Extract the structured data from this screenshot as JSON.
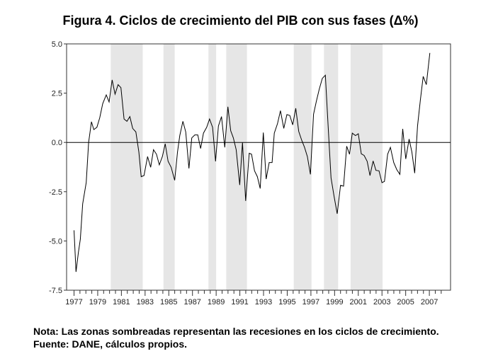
{
  "chart_data": {
    "type": "line",
    "title": "Figura 4. Ciclos de crecimiento del PIB con sus fases (Δ%)",
    "xlabel": "",
    "ylabel": "",
    "xlim": [
      1976.4,
      2008.8
    ],
    "ylim": [
      -7.5,
      5.0
    ],
    "yticks": [
      "5.0",
      "2.5",
      "0.0",
      "-2.5",
      "-5.0",
      "-7.5"
    ],
    "ytick_values": [
      5.0,
      2.5,
      0.0,
      -2.5,
      -5.0,
      -7.5
    ],
    "xticks": [
      "1977",
      "1979",
      "1981",
      "1983",
      "1985",
      "1987",
      "1989",
      "1991",
      "1993",
      "1995",
      "1997",
      "1999",
      "2001",
      "2003",
      "2005",
      "2007"
    ],
    "grid": false,
    "reference_line": 0,
    "line_color": "#000000",
    "shade_color": "#e6e6e6",
    "recessions": [
      [
        1980.1,
        1982.8
      ],
      [
        1984.55,
        1985.5
      ],
      [
        1988.35,
        1989.0
      ],
      [
        1989.85,
        1991.6
      ],
      [
        1995.55,
        1997.05
      ],
      [
        1998.1,
        1999.3
      ],
      [
        2000.35,
        2003.05
      ]
    ],
    "series": [
      {
        "x": [
          1977.0,
          1977.17,
          1977.37,
          1977.53,
          1977.73,
          1978.03,
          1978.23,
          1978.47,
          1978.67,
          1978.93,
          1979.17,
          1979.42,
          1979.72,
          1979.96,
          1980.22,
          1980.46,
          1980.72,
          1980.96,
          1981.22,
          1981.47,
          1981.71,
          1981.95,
          1982.22,
          1982.47,
          1982.67,
          1982.91,
          1983.21,
          1983.47,
          1983.71,
          1983.96,
          1984.2,
          1984.46,
          1984.7,
          1984.94,
          1985.2,
          1985.5,
          1985.74,
          1985.93,
          1986.19,
          1986.43,
          1986.7,
          1986.94,
          1987.2,
          1987.45,
          1987.69,
          1987.93,
          1988.2,
          1988.44,
          1988.7,
          1988.95,
          1989.19,
          1989.45,
          1989.73,
          1989.99,
          1990.23,
          1990.45,
          1990.69,
          1990.99,
          1991.22,
          1991.49,
          1991.79,
          1991.99,
          1992.24,
          1992.48,
          1992.72,
          1992.98,
          1993.22,
          1993.48,
          1993.72,
          1993.91,
          1994.18,
          1994.43,
          1994.71,
          1994.97,
          1995.22,
          1995.46,
          1995.72,
          1995.97,
          1996.22,
          1996.46,
          1996.7,
          1996.96,
          1997.22,
          1997.46,
          1997.7,
          1997.96,
          1998.22,
          1998.46,
          1998.7,
          1998.96,
          1999.22,
          1999.5,
          1999.76,
          2000.02,
          2000.26,
          2000.49,
          2000.76,
          2001.0,
          2001.25,
          2001.49,
          2001.75,
          2001.99,
          2002.25,
          2002.49,
          2002.75,
          2003.0,
          2003.21,
          2003.48,
          2003.71,
          2003.99,
          2004.25,
          2004.51,
          2004.75,
          2005.01,
          2005.29,
          2005.52,
          2005.76,
          2006.0,
          2006.24,
          2006.48,
          2006.74,
          2007.04
        ],
        "values": [
          -4.46,
          -6.57,
          -5.57,
          -4.91,
          -3.12,
          -2.04,
          0.0,
          1.05,
          0.65,
          0.77,
          1.25,
          1.97,
          2.41,
          2.05,
          3.17,
          2.45,
          2.93,
          2.78,
          1.19,
          1.07,
          1.31,
          0.71,
          0.53,
          -0.48,
          -1.74,
          -1.68,
          -0.72,
          -1.26,
          -0.37,
          -0.6,
          -1.14,
          -0.72,
          -0.07,
          -0.96,
          -1.26,
          -1.92,
          -0.48,
          0.35,
          1.07,
          0.53,
          -1.32,
          0.23,
          0.38,
          0.38,
          -0.31,
          0.47,
          0.77,
          1.19,
          0.77,
          -0.96,
          0.83,
          1.31,
          -0.25,
          1.81,
          0.59,
          0.23,
          -0.37,
          -2.16,
          0.0,
          -2.97,
          -0.55,
          -0.6,
          -1.44,
          -1.74,
          -2.34,
          0.5,
          -1.86,
          -1.02,
          -1.02,
          0.47,
          0.95,
          1.61,
          0.71,
          1.41,
          1.37,
          0.89,
          1.73,
          0.56,
          0.11,
          -0.25,
          -0.72,
          -1.62,
          1.43,
          2.09,
          2.69,
          3.25,
          3.41,
          0.77,
          -1.8,
          -2.76,
          -3.62,
          -2.18,
          -2.22,
          -0.19,
          -0.6,
          0.47,
          0.35,
          0.44,
          -0.58,
          -0.66,
          -0.96,
          -1.68,
          -0.94,
          -1.42,
          -1.44,
          -2.04,
          -1.98,
          -0.6,
          -0.25,
          -1.02,
          -1.38,
          -1.62,
          0.69,
          -0.84,
          0.17,
          -0.48,
          -1.56,
          0.83,
          2.15,
          3.35,
          2.93,
          4.54
        ]
      }
    ]
  },
  "note": "Nota: Las zonas sombreadas representan las recesiones en los ciclos de crecimiento. Fuente: DANE, cálculos propios."
}
